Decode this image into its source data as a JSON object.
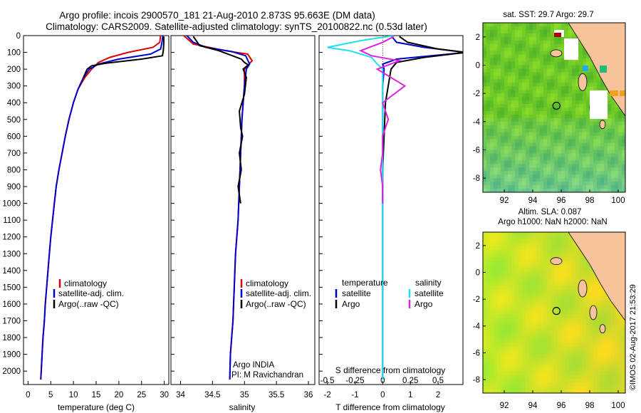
{
  "header": {
    "line1": "Argo profile: incois 2900570_181 21-Aug-2010 2.873S 95.663E (DM data)",
    "line2": "Climatology: CARS2009. Satellite-adjusted climatology: synTS_20100822.nc (0.53d later)"
  },
  "colors": {
    "climatology": "#dd0000",
    "satellite": "#0000cc",
    "argo": "#000000",
    "sal_sat": "#22ddee",
    "sal_argo": "#dd22dd",
    "land": "#f7c39a"
  },
  "chart_data": [
    {
      "type": "line",
      "title": "",
      "xlabel": "temperature (deg C)",
      "ylabel": "",
      "xlim": [
        -1,
        31
      ],
      "ylim": [
        2080,
        0
      ],
      "xticks": [
        "0",
        "5",
        "10",
        "15",
        "20",
        "25",
        "30"
      ],
      "yticks": [
        "0",
        "100",
        "200",
        "300",
        "400",
        "500",
        "600",
        "700",
        "800",
        "900",
        "1000",
        "1100",
        "1200",
        "1300",
        "1400",
        "1500",
        "1600",
        "1700",
        "1800",
        "1900",
        "2000"
      ],
      "legend": [
        "climatology",
        "satellite-adj. clim.",
        "Argo(..raw -QC)"
      ],
      "series": [
        {
          "name": "climatology",
          "color": "#dd0000",
          "points": [
            [
              29.2,
              0
            ],
            [
              29.0,
              40
            ],
            [
              27.5,
              70
            ],
            [
              22,
              100
            ],
            [
              18,
              130
            ],
            [
              15.5,
              160
            ],
            [
              14,
              200
            ],
            [
              12.5,
              250
            ],
            [
              11,
              320
            ],
            [
              10,
              400
            ],
            [
              9,
              500
            ],
            [
              8.2,
              600
            ],
            [
              7.5,
              700
            ],
            [
              6.8,
              800
            ],
            [
              6.2,
              900
            ],
            [
              5.8,
              1000
            ],
            [
              5.4,
              1100
            ],
            [
              5,
              1200
            ],
            [
              4.7,
              1300
            ],
            [
              4.4,
              1400
            ],
            [
              4.1,
              1500
            ],
            [
              3.8,
              1600
            ],
            [
              3.6,
              1700
            ],
            [
              3.3,
              1800
            ],
            [
              3.1,
              1900
            ],
            [
              2.9,
              2000
            ],
            [
              2.8,
              2050
            ]
          ]
        },
        {
          "name": "satellite-adj. clim.",
          "color": "#0000cc",
          "points": [
            [
              29.7,
              0
            ],
            [
              29.5,
              40
            ],
            [
              29.2,
              80
            ],
            [
              27,
              110
            ],
            [
              20,
              140
            ],
            [
              15.5,
              170
            ],
            [
              13.5,
              200
            ],
            [
              12.2,
              250
            ],
            [
              11,
              320
            ],
            [
              10,
              400
            ],
            [
              9,
              500
            ],
            [
              8.2,
              600
            ],
            [
              7.5,
              700
            ],
            [
              6.8,
              800
            ],
            [
              6.2,
              900
            ],
            [
              5.8,
              1000
            ],
            [
              5.4,
              1100
            ],
            [
              5,
              1200
            ],
            [
              4.7,
              1300
            ],
            [
              4.4,
              1400
            ],
            [
              4.1,
              1500
            ],
            [
              3.8,
              1600
            ],
            [
              3.6,
              1700
            ],
            [
              3.3,
              1800
            ],
            [
              3.1,
              1900
            ],
            [
              2.9,
              2000
            ],
            [
              2.8,
              2050
            ]
          ]
        },
        {
          "name": "Argo(..raw -QC)",
          "color": "#000000",
          "points": [
            [
              29.9,
              5
            ],
            [
              29.9,
              40
            ],
            [
              29.8,
              90
            ],
            [
              29.6,
              120
            ],
            [
              25,
              140
            ],
            [
              17,
              165
            ],
            [
              14,
              180
            ],
            [
              13,
              200
            ],
            [
              12.2,
              250
            ]
          ]
        }
      ]
    },
    {
      "type": "line",
      "title": "",
      "xlabel": "salinity",
      "ylabel": "",
      "xlim": [
        33.85,
        36.1
      ],
      "ylim": [
        2080,
        0
      ],
      "xticks": [
        "34",
        "34.5",
        "35",
        "35.5",
        "36"
      ],
      "legend": [
        "climatology",
        "satellite-adj. clim.",
        "Argo(..raw -QC)"
      ],
      "annotations": [
        "Argo INDIA",
        "PI: M Ravichandran"
      ],
      "series": [
        {
          "name": "climatology",
          "color": "#dd0000",
          "points": [
            [
              34.05,
              0
            ],
            [
              34.2,
              50
            ],
            [
              34.7,
              90
            ],
            [
              35.05,
              110
            ],
            [
              35.12,
              150
            ],
            [
              35.0,
              200
            ],
            [
              35.0,
              300
            ],
            [
              34.98,
              400
            ],
            [
              34.96,
              500
            ],
            [
              34.94,
              700
            ],
            [
              34.92,
              900
            ],
            [
              34.9,
              1100
            ],
            [
              34.86,
              1300
            ],
            [
              34.84,
              1500
            ],
            [
              34.82,
              1700
            ],
            [
              34.78,
              1900
            ],
            [
              34.77,
              2050
            ]
          ]
        },
        {
          "name": "satellite-adj. clim.",
          "color": "#0000cc",
          "points": [
            [
              34.1,
              0
            ],
            [
              34.2,
              40
            ],
            [
              34.4,
              70
            ],
            [
              34.8,
              95
            ],
            [
              35.02,
              120
            ],
            [
              35.08,
              170
            ],
            [
              35.03,
              200
            ],
            [
              35.0,
              300
            ],
            [
              34.98,
              400
            ],
            [
              34.96,
              500
            ],
            [
              34.94,
              700
            ],
            [
              34.92,
              900
            ],
            [
              34.9,
              1100
            ],
            [
              34.86,
              1300
            ],
            [
              34.84,
              1500
            ],
            [
              34.82,
              1700
            ],
            [
              34.78,
              1900
            ],
            [
              34.77,
              2050
            ]
          ]
        },
        {
          "name": "Argo(..raw -QC)",
          "color": "#000000",
          "points": [
            [
              34.2,
              5
            ],
            [
              34.3,
              60
            ],
            [
              34.6,
              90
            ],
            [
              34.95,
              140
            ],
            [
              35.0,
              160
            ],
            [
              35.06,
              175
            ],
            [
              34.98,
              200
            ],
            [
              35.03,
              250
            ],
            [
              35.0,
              350
            ],
            [
              34.92,
              450
            ],
            [
              34.94,
              550
            ],
            [
              34.97,
              600
            ],
            [
              34.92,
              700
            ],
            [
              34.95,
              800
            ],
            [
              34.9,
              900
            ],
            [
              34.94,
              1000
            ]
          ]
        }
      ]
    },
    {
      "type": "line",
      "title": "",
      "xlabel": "T difference from climatology",
      "ylabel": "",
      "xlim": [
        -2.3,
        2.9
      ],
      "ylim": [
        2080,
        0
      ],
      "xticks": [
        "-2",
        "-1",
        "0",
        "1",
        "2"
      ],
      "xlabel2": "S difference from climatology",
      "xticks2": [
        "-0.5",
        "-0.25",
        "0",
        "0.25",
        "0.5"
      ],
      "legend": [
        "temperature",
        "satellite",
        "Argo",
        "salinity",
        "satellite",
        "Argo"
      ],
      "series": [
        {
          "name": "T satellite",
          "color": "#0000cc",
          "points": [
            [
              0.3,
              0
            ],
            [
              0.5,
              40
            ],
            [
              1.5,
              70
            ],
            [
              3,
              100
            ],
            [
              0.5,
              140
            ],
            [
              0,
              170
            ],
            [
              0.05,
              200
            ],
            [
              0,
              300
            ],
            [
              0,
              600
            ],
            [
              0,
              1000
            ],
            [
              0,
              2050
            ]
          ]
        },
        {
          "name": "T Argo",
          "color": "#000000",
          "points": [
            [
              0.6,
              5
            ],
            [
              0.9,
              40
            ],
            [
              2,
              80
            ],
            [
              3,
              100
            ],
            [
              1.5,
              130
            ],
            [
              0.5,
              160
            ],
            [
              0.3,
              200
            ],
            [
              0.1,
              400
            ],
            [
              0,
              800
            ],
            [
              0,
              1000
            ]
          ]
        },
        {
          "name": "S satellite",
          "color": "#22ddee",
          "points": [
            [
              0.1,
              0
            ],
            [
              -0.2,
              30
            ],
            [
              -0.5,
              70
            ],
            [
              -0.3,
              90
            ],
            [
              -0.1,
              130
            ],
            [
              -0.05,
              170
            ],
            [
              0,
              200
            ],
            [
              0,
              300
            ],
            [
              0,
              700
            ],
            [
              0,
              1200
            ],
            [
              0,
              2050
            ]
          ]
        },
        {
          "name": "S Argo",
          "color": "#dd22dd",
          "points": [
            [
              0.1,
              5
            ],
            [
              0,
              40
            ],
            [
              -0.2,
              90
            ],
            [
              -0.1,
              120
            ],
            [
              0.15,
              150
            ],
            [
              -0.05,
              200
            ],
            [
              0.2,
              300
            ],
            [
              0,
              400
            ],
            [
              0.05,
              500
            ],
            [
              0,
              600
            ],
            [
              0,
              700
            ],
            [
              -0.02,
              800
            ],
            [
              0,
              900
            ],
            [
              0,
              1000
            ]
          ]
        }
      ]
    },
    {
      "type": "heatmap",
      "title": "sat. SST: 29.7 Argo: 29.7",
      "xticks": [
        "92",
        "94",
        "96",
        "98",
        "100"
      ],
      "yticks": [
        "2",
        "0",
        "-2",
        "-4",
        "-6",
        "-8"
      ],
      "xlim": [
        90.5,
        100.5
      ],
      "ylim": [
        -9,
        3
      ],
      "marker": [
        95.663,
        -2.873
      ]
    },
    {
      "type": "heatmap",
      "title": "Altim. SLA: 0.087",
      "subtitle": "Argo h1000: NaN h2000: NaN",
      "xticks": [
        "92",
        "94",
        "96",
        "98",
        "100"
      ],
      "yticks": [
        "2",
        "0",
        "-2",
        "-4",
        "-6",
        "-8"
      ],
      "xlim": [
        90.5,
        100.5
      ],
      "ylim": [
        -9,
        3
      ],
      "marker": [
        95.663,
        -2.873
      ]
    }
  ],
  "footer": {
    "credit": "©IMOS 02-Aug-2017 21:53:29"
  }
}
